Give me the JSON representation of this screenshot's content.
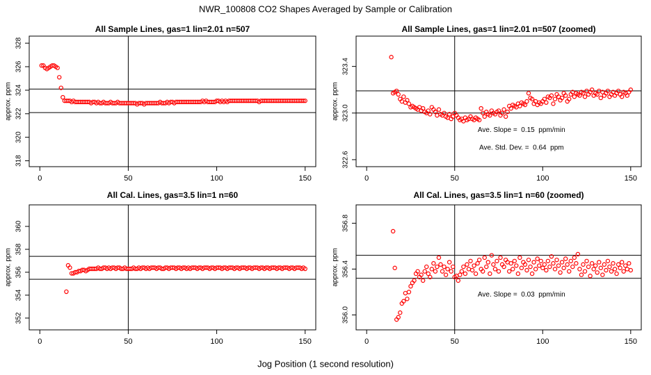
{
  "title": "NWR_100808  CO2 Shapes Averaged by Sample or Calibration",
  "x_label": "Jog Position (1 second resolution)",
  "chart_data": [
    {
      "type": "scatter",
      "title": "All Sample Lines, gas=1 lin=2.01 n=507",
      "y_label": "approx. ppm",
      "color": "#ff0000",
      "xlim": [
        -6,
        156
      ],
      "xticks": [
        0,
        50,
        100,
        150
      ],
      "ylim": [
        317.5,
        328.6
      ],
      "yticks": [
        318,
        320,
        322,
        324,
        326,
        328
      ],
      "hlines": [
        324.1,
        322.1
      ],
      "vline": 50,
      "x": [
        1,
        2,
        3,
        4,
        5,
        6,
        7,
        8,
        9,
        10,
        11,
        12,
        13,
        14,
        15,
        16,
        17,
        18,
        19,
        20,
        21,
        22,
        23,
        24,
        25,
        26,
        27,
        28,
        29,
        30,
        31,
        32,
        33,
        34,
        35,
        36,
        37,
        38,
        39,
        40,
        41,
        42,
        43,
        44,
        45,
        46,
        47,
        48,
        49,
        50,
        51,
        52,
        53,
        54,
        55,
        56,
        57,
        58,
        59,
        60,
        61,
        62,
        63,
        64,
        65,
        66,
        67,
        68,
        69,
        70,
        71,
        72,
        73,
        74,
        75,
        76,
        77,
        78,
        79,
        80,
        81,
        82,
        83,
        84,
        85,
        86,
        87,
        88,
        89,
        90,
        91,
        92,
        93,
        94,
        95,
        96,
        97,
        98,
        99,
        100,
        101,
        102,
        103,
        104,
        105,
        106,
        107,
        108,
        109,
        110,
        111,
        112,
        113,
        114,
        115,
        116,
        117,
        118,
        119,
        120,
        121,
        122,
        123,
        124,
        125,
        126,
        127,
        128,
        129,
        130,
        131,
        132,
        133,
        134,
        135,
        136,
        137,
        138,
        139,
        140,
        141,
        142,
        143,
        144,
        145,
        146,
        147,
        148,
        149,
        150
      ],
      "values": [
        326.1,
        326.1,
        325.9,
        325.8,
        325.9,
        326.0,
        326.1,
        326.1,
        326.0,
        325.9,
        325.1,
        324.2,
        323.4,
        323.1,
        323.1,
        323.1,
        323.1,
        323.0,
        323.1,
        323.0,
        323.0,
        323.0,
        323.0,
        323.0,
        323.0,
        323.0,
        323.0,
        323.0,
        322.9,
        323.0,
        323.0,
        322.9,
        323.0,
        322.9,
        322.9,
        323.0,
        322.9,
        322.9,
        322.9,
        323.0,
        322.9,
        322.9,
        322.9,
        323.0,
        322.9,
        322.9,
        322.9,
        322.9,
        322.9,
        322.9,
        322.9,
        322.9,
        322.9,
        322.9,
        322.8,
        322.9,
        322.9,
        322.9,
        322.8,
        322.9,
        322.9,
        322.9,
        322.9,
        322.9,
        322.9,
        322.9,
        322.9,
        323.0,
        322.9,
        322.9,
        322.9,
        323.0,
        322.9,
        323.0,
        323.0,
        322.9,
        323.0,
        323.0,
        323.0,
        323.0,
        323.0,
        323.0,
        323.0,
        323.0,
        323.0,
        323.0,
        323.0,
        323.0,
        323.0,
        323.0,
        323.0,
        323.1,
        323.0,
        323.1,
        323.0,
        323.0,
        323.0,
        323.0,
        323.0,
        323.1,
        323.1,
        323.0,
        323.1,
        323.0,
        323.1,
        323.0,
        323.1,
        323.1,
        323.1,
        323.1,
        323.1,
        323.1,
        323.1,
        323.1,
        323.1,
        323.1,
        323.1,
        323.1,
        323.1,
        323.1,
        323.1,
        323.1,
        323.1,
        323.0,
        323.1,
        323.1,
        323.1,
        323.1,
        323.1,
        323.1,
        323.1,
        323.1,
        323.1,
        323.1,
        323.1,
        323.1,
        323.1,
        323.1,
        323.1,
        323.1,
        323.1,
        323.1,
        323.1,
        323.1,
        323.1,
        323.1,
        323.1,
        323.1,
        323.1,
        323.1
      ]
    },
    {
      "type": "scatter",
      "title": "All Sample Lines, gas=1 lin=2.01 n=507 (zoomed)",
      "y_label": "approx. ppm",
      "color": "#ff0000",
      "xlim": [
        -6,
        156
      ],
      "xticks": [
        0,
        50,
        100,
        150
      ],
      "ylim": [
        322.54,
        323.66
      ],
      "yticks": [
        322.6,
        {
          "value": 323,
          "label": "323.0"
        },
        323.4
      ],
      "hlines": [
        323.19,
        323.0
      ],
      "vline": 50,
      "annotations": [
        "Ave. Slope =  0.15  ppm/min",
        "Ave. Std. Dev. =  0.64  ppm"
      ],
      "x": [
        14,
        15,
        16,
        17,
        18,
        19,
        20,
        21,
        22,
        23,
        24,
        25,
        26,
        27,
        28,
        29,
        30,
        31,
        32,
        33,
        34,
        35,
        36,
        37,
        38,
        39,
        40,
        41,
        42,
        43,
        44,
        45,
        46,
        47,
        48,
        49,
        50,
        51,
        52,
        53,
        54,
        55,
        56,
        57,
        58,
        59,
        60,
        61,
        62,
        63,
        64,
        65,
        66,
        67,
        68,
        69,
        70,
        71,
        72,
        73,
        74,
        75,
        76,
        77,
        78,
        79,
        80,
        81,
        82,
        83,
        84,
        85,
        86,
        87,
        88,
        89,
        90,
        91,
        92,
        93,
        94,
        95,
        96,
        97,
        98,
        99,
        100,
        101,
        102,
        103,
        104,
        105,
        106,
        107,
        108,
        109,
        110,
        111,
        112,
        113,
        114,
        115,
        116,
        117,
        118,
        119,
        120,
        121,
        122,
        123,
        124,
        125,
        126,
        127,
        128,
        129,
        130,
        131,
        132,
        133,
        134,
        135,
        136,
        137,
        138,
        139,
        140,
        141,
        142,
        143,
        144,
        145,
        146,
        147,
        148,
        149,
        150
      ],
      "values": [
        323.48,
        323.17,
        323.18,
        323.19,
        323.16,
        323.12,
        323.1,
        323.14,
        323.09,
        323.11,
        323.08,
        323.05,
        323.06,
        323.05,
        323.04,
        323.03,
        323.05,
        323.02,
        323.04,
        323.01,
        323.0,
        323.02,
        322.99,
        323.05,
        323.03,
        323.01,
        322.98,
        323.03,
        322.99,
        322.98,
        323.0,
        322.97,
        322.96,
        322.99,
        322.95,
        322.97,
        323.0,
        322.98,
        322.96,
        322.94,
        322.95,
        322.93,
        322.96,
        322.94,
        322.95,
        322.97,
        322.95,
        322.94,
        322.96,
        322.95,
        322.94,
        323.04,
        323.0,
        322.97,
        323.01,
        322.99,
        322.98,
        323.02,
        323.0,
        322.99,
        323.01,
        323.02,
        322.98,
        323.0,
        323.03,
        322.97,
        323.01,
        323.06,
        323.04,
        323.07,
        323.06,
        323.05,
        323.08,
        323.06,
        323.09,
        323.08,
        323.07,
        323.1,
        323.17,
        323.13,
        323.12,
        323.08,
        323.1,
        323.07,
        323.09,
        323.08,
        323.1,
        323.12,
        323.09,
        323.14,
        323.13,
        323.15,
        323.08,
        323.12,
        323.16,
        323.14,
        323.11,
        323.13,
        323.17,
        323.15,
        323.1,
        323.12,
        323.16,
        323.18,
        323.14,
        323.17,
        323.16,
        323.15,
        323.18,
        323.17,
        323.14,
        323.19,
        323.16,
        323.18,
        323.2,
        323.15,
        323.17,
        323.16,
        323.19,
        323.13,
        323.18,
        323.15,
        323.17,
        323.19,
        323.14,
        323.16,
        323.18,
        323.15,
        323.17,
        323.19,
        323.16,
        323.14,
        323.18,
        323.17,
        323.15,
        323.18,
        323.2
      ]
    },
    {
      "type": "scatter",
      "title": "All Cal. Lines, gas=3.5 lin=1 n=60",
      "y_label": "approx. ppm",
      "color": "#ff0000",
      "xlim": [
        -6,
        156
      ],
      "xticks": [
        0,
        50,
        100,
        150
      ],
      "ylim": [
        350.97,
        361.88
      ],
      "yticks": [
        352,
        354,
        356,
        358,
        360
      ],
      "hlines": [
        357.39,
        355.39
      ],
      "vline": 50,
      "x": [
        15,
        16,
        17,
        18,
        19,
        20,
        21,
        22,
        23,
        24,
        25,
        26,
        27,
        28,
        29,
        30,
        31,
        32,
        33,
        34,
        35,
        36,
        37,
        38,
        39,
        40,
        41,
        42,
        43,
        44,
        45,
        46,
        47,
        48,
        49,
        50,
        51,
        52,
        53,
        54,
        55,
        56,
        57,
        58,
        59,
        60,
        61,
        62,
        63,
        64,
        65,
        66,
        67,
        68,
        69,
        70,
        71,
        72,
        73,
        74,
        75,
        76,
        77,
        78,
        79,
        80,
        81,
        82,
        83,
        84,
        85,
        86,
        87,
        88,
        89,
        90,
        91,
        92,
        93,
        94,
        95,
        96,
        97,
        98,
        99,
        100,
        101,
        102,
        103,
        104,
        105,
        106,
        107,
        108,
        109,
        110,
        111,
        112,
        113,
        114,
        115,
        116,
        117,
        118,
        119,
        120,
        121,
        122,
        123,
        124,
        125,
        126,
        127,
        128,
        129,
        130,
        131,
        132,
        133,
        134,
        135,
        136,
        137,
        138,
        139,
        140,
        141,
        142,
        143,
        144,
        145,
        146,
        147,
        148,
        149,
        150
      ],
      "values": [
        354.3,
        356.6,
        356.4,
        355.9,
        355.9,
        356.0,
        356.0,
        356.1,
        356.1,
        356.2,
        356.2,
        356.1,
        356.2,
        356.3,
        356.3,
        356.3,
        356.3,
        356.3,
        356.4,
        356.3,
        356.3,
        356.4,
        356.4,
        356.3,
        356.4,
        356.3,
        356.4,
        356.4,
        356.3,
        356.4,
        356.4,
        356.3,
        356.3,
        356.4,
        356.3,
        356.3,
        356.3,
        356.3,
        356.4,
        356.3,
        356.3,
        356.4,
        356.3,
        356.4,
        356.4,
        356.3,
        356.4,
        356.3,
        356.4,
        356.4,
        356.4,
        356.3,
        356.4,
        356.4,
        356.3,
        356.3,
        356.4,
        356.4,
        356.3,
        356.4,
        356.4,
        356.4,
        356.3,
        356.4,
        356.4,
        356.3,
        356.4,
        356.4,
        356.3,
        356.4,
        356.3,
        356.4,
        356.4,
        356.4,
        356.3,
        356.4,
        356.4,
        356.3,
        356.4,
        356.4,
        356.4,
        356.3,
        356.4,
        356.4,
        356.3,
        356.4,
        356.4,
        356.4,
        356.3,
        356.4,
        356.4,
        356.3,
        356.4,
        356.4,
        356.4,
        356.3,
        356.4,
        356.4,
        356.3,
        356.4,
        356.4,
        356.4,
        356.3,
        356.4,
        356.4,
        356.3,
        356.4,
        356.4,
        356.4,
        356.3,
        356.4,
        356.4,
        356.3,
        356.4,
        356.4,
        356.3,
        356.4,
        356.4,
        356.4,
        356.3,
        356.4,
        356.4,
        356.3,
        356.4,
        356.4,
        356.4,
        356.3,
        356.4,
        356.4,
        356.3,
        356.4,
        356.4,
        356.4,
        356.3,
        356.4,
        356.3
      ]
    },
    {
      "type": "scatter",
      "title": "All Cal. Lines, gas=3.5 lin=1 n=60 (zoomed)",
      "y_label": "approx. ppm",
      "color": "#ff0000",
      "xlim": [
        -6,
        156
      ],
      "xticks": [
        0,
        50,
        100,
        150
      ],
      "ylim": [
        355.87,
        356.96
      ],
      "yticks": [
        {
          "value": 356,
          "label": "356.0"
        },
        356.4,
        356.8
      ],
      "hlines": [
        356.52,
        356.32
      ],
      "vline": 50,
      "annotations": [
        "Ave. Slope =  0.03  ppm/min"
      ],
      "x": [
        15,
        16,
        17,
        18,
        19,
        20,
        21,
        22,
        23,
        24,
        25,
        26,
        27,
        28,
        29,
        30,
        31,
        32,
        33,
        34,
        35,
        36,
        37,
        38,
        39,
        40,
        41,
        42,
        43,
        44,
        45,
        46,
        47,
        48,
        49,
        50,
        51,
        52,
        53,
        54,
        55,
        56,
        57,
        58,
        59,
        60,
        61,
        62,
        63,
        64,
        65,
        66,
        67,
        68,
        69,
        70,
        71,
        72,
        73,
        74,
        75,
        76,
        77,
        78,
        79,
        80,
        81,
        82,
        83,
        84,
        85,
        86,
        87,
        88,
        89,
        90,
        91,
        92,
        93,
        94,
        95,
        96,
        97,
        98,
        99,
        100,
        101,
        102,
        103,
        104,
        105,
        106,
        107,
        108,
        109,
        110,
        111,
        112,
        113,
        114,
        115,
        116,
        117,
        118,
        119,
        120,
        121,
        122,
        123,
        124,
        125,
        126,
        127,
        128,
        129,
        130,
        131,
        132,
        133,
        134,
        135,
        136,
        137,
        138,
        139,
        140,
        141,
        142,
        143,
        144,
        145,
        146,
        147,
        148,
        149,
        150
      ],
      "values": [
        356.73,
        356.41,
        355.96,
        355.98,
        356.02,
        356.1,
        356.12,
        356.19,
        356.14,
        356.2,
        356.25,
        356.28,
        356.3,
        356.36,
        356.38,
        356.33,
        356.35,
        356.3,
        356.38,
        356.42,
        356.36,
        356.33,
        356.4,
        356.45,
        356.38,
        356.42,
        356.5,
        356.44,
        356.38,
        356.42,
        356.35,
        356.4,
        356.46,
        356.38,
        356.42,
        356.33,
        356.34,
        356.3,
        356.35,
        356.38,
        356.42,
        356.36,
        356.44,
        356.4,
        356.47,
        356.39,
        356.43,
        356.36,
        356.45,
        356.48,
        356.4,
        356.38,
        356.5,
        356.42,
        356.46,
        356.36,
        356.52,
        356.44,
        356.4,
        356.47,
        356.38,
        356.5,
        356.44,
        356.42,
        356.48,
        356.46,
        356.38,
        356.45,
        356.4,
        356.47,
        356.43,
        356.36,
        356.5,
        356.41,
        356.46,
        356.44,
        356.39,
        356.48,
        356.42,
        356.36,
        356.46,
        356.4,
        356.49,
        356.43,
        356.47,
        356.41,
        356.44,
        356.39,
        356.47,
        356.42,
        356.51,
        356.45,
        356.4,
        356.48,
        356.43,
        356.37,
        356.46,
        356.41,
        356.49,
        356.44,
        356.38,
        356.47,
        356.42,
        356.5,
        356.45,
        356.53,
        356.4,
        356.35,
        356.44,
        356.38,
        356.47,
        356.42,
        356.34,
        356.45,
        356.4,
        356.43,
        356.37,
        356.46,
        356.41,
        356.35,
        356.44,
        356.39,
        356.47,
        356.42,
        356.38,
        356.45,
        356.4,
        356.36,
        356.44,
        356.41,
        356.46,
        356.38,
        356.43,
        356.4,
        356.45,
        356.39
      ]
    }
  ]
}
